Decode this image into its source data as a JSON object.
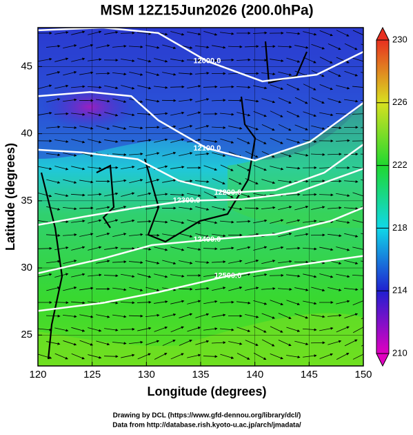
{
  "title": "MSM 12Z15Jun2026 (200.0hPa)",
  "map": {
    "xlabel": "Longitude (degrees)",
    "ylabel": "Latitude  (degrees)",
    "xlim": [
      120,
      150
    ],
    "ylim": [
      22.7,
      47.9
    ],
    "xticks": [
      120,
      125,
      130,
      135,
      140,
      145,
      150
    ],
    "yticks": [
      25,
      30,
      35,
      40,
      45
    ],
    "grid": true,
    "contours": [
      {
        "level": 12000,
        "label": "12000.0",
        "color": "#ffffff",
        "points": [
          [
            120,
            47.7
          ],
          [
            126,
            47.9
          ],
          [
            131.1,
            47.5
          ],
          [
            135.6,
            45.4
          ],
          [
            140.7,
            43.9
          ],
          [
            145.7,
            44.4
          ],
          [
            150,
            46.1
          ]
        ]
      },
      {
        "level": 12100,
        "label": "12100.0",
        "color": "#ffffff",
        "points": [
          [
            120,
            42.8
          ],
          [
            124.8,
            43.1
          ],
          [
            128.6,
            42.8
          ],
          [
            131.1,
            41.0
          ],
          [
            135.6,
            38.9
          ],
          [
            140.0,
            38.0
          ],
          [
            145.1,
            39.4
          ],
          [
            150,
            42.3
          ]
        ]
      },
      {
        "level": 12200,
        "label": "12200.0",
        "color": "#ffffff",
        "points": [
          [
            120,
            38.8
          ],
          [
            124.1,
            38.6
          ],
          [
            129.2,
            38.1
          ],
          [
            133.0,
            36.5
          ],
          [
            137.5,
            35.6
          ],
          [
            141.9,
            35.8
          ],
          [
            146.4,
            37.1
          ],
          [
            150,
            39.2
          ]
        ]
      },
      {
        "level": 12300,
        "label": "12300.0",
        "color": "#ffffff",
        "points": [
          [
            120,
            33.2
          ],
          [
            124.1,
            33.8
          ],
          [
            129.2,
            34.5
          ],
          [
            133.7,
            35.0
          ],
          [
            138.8,
            35.1
          ],
          [
            143.8,
            35.6
          ],
          [
            150,
            37.4
          ]
        ]
      },
      {
        "level": 12400,
        "label": "12400.0",
        "color": "#ffffff",
        "points": [
          [
            120,
            29.6
          ],
          [
            126.0,
            30.7
          ],
          [
            130.5,
            31.7
          ],
          [
            135.6,
            32.1
          ],
          [
            141.9,
            32.5
          ],
          [
            147.0,
            33.5
          ],
          [
            150,
            34.5
          ]
        ]
      },
      {
        "level": 12500,
        "label": "12500.0",
        "color": "#ffffff",
        "points": [
          [
            120,
            26.8
          ],
          [
            126.0,
            27.4
          ],
          [
            131.1,
            28.2
          ],
          [
            137.5,
            29.4
          ],
          [
            143.8,
            30.2
          ],
          [
            150,
            30.9
          ]
        ]
      }
    ]
  },
  "colorbar": {
    "lim": [
      210,
      230
    ],
    "ticks": [
      210,
      214,
      218,
      222,
      226,
      230
    ],
    "colors": [
      "#e000c0",
      "#2020d0",
      "#10d8e8",
      "#20d830",
      "#d8e020",
      "#e83020"
    ]
  },
  "credits": [
    "Drawing by DCL (https://www.gfd-dennou.org/library/dcl/)",
    "Data from http://database.rish.kyoto-u.ac.jp/arch/jmadata/"
  ]
}
